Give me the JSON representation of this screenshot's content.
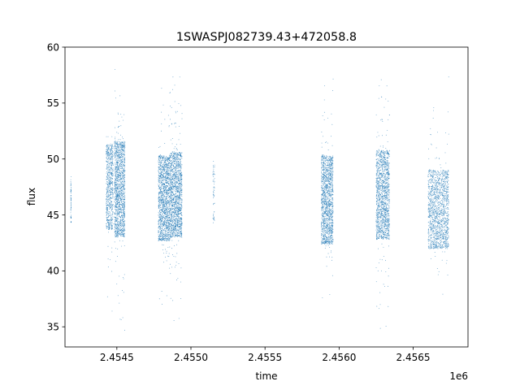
{
  "chart_data": {
    "type": "scatter",
    "title": "1SWASPJ082739.43+472058.8",
    "xlabel": "time",
    "ylabel": "flux",
    "x_offset_label": "1e6",
    "xlim": [
      2454150,
      2456870
    ],
    "ylim": [
      33.2,
      60.0
    ],
    "x_ticks": [
      2454500,
      2455000,
      2455500,
      2456000,
      2456500
    ],
    "x_tick_labels": [
      "2.4545",
      "2.4550",
      "2.4555",
      "2.4560",
      "2.4565"
    ],
    "y_ticks": [
      35,
      40,
      45,
      50,
      55,
      60
    ],
    "y_tick_labels": [
      "35",
      "40",
      "45",
      "50",
      "55",
      "60"
    ],
    "grid": false,
    "point_color": "#1f77b4",
    "observing_seasons": [
      {
        "x_start": 2454188,
        "x_end": 2454192,
        "flux_low": 44.2,
        "flux_high": 48.6,
        "outlier_low": 44.0,
        "outlier_high": 48.6,
        "density": "sparse"
      },
      {
        "x_start": 2454428,
        "x_end": 2454475,
        "flux_low": 43.5,
        "flux_high": 51.5,
        "outlier_low": 34.8,
        "outlier_high": 52.0,
        "density": "medium"
      },
      {
        "x_start": 2454484,
        "x_end": 2454555,
        "flux_low": 42.8,
        "flux_high": 51.8,
        "outlier_low": 34.5,
        "outlier_high": 58.5,
        "density": "dense"
      },
      {
        "x_start": 2454780,
        "x_end": 2454860,
        "flux_low": 42.5,
        "flux_high": 50.5,
        "outlier_low": 34.4,
        "outlier_high": 57.5,
        "density": "dense"
      },
      {
        "x_start": 2454860,
        "x_end": 2454940,
        "flux_low": 42.8,
        "flux_high": 50.8,
        "outlier_low": 35.0,
        "outlier_high": 58.8,
        "density": "dense"
      },
      {
        "x_start": 2455148,
        "x_end": 2455160,
        "flux_low": 44.0,
        "flux_high": 50.0,
        "outlier_low": 43.5,
        "outlier_high": 50.2,
        "density": "sparse"
      },
      {
        "x_start": 2455880,
        "x_end": 2455960,
        "flux_low": 42.2,
        "flux_high": 50.5,
        "outlier_low": 34.3,
        "outlier_high": 58.8,
        "density": "dense"
      },
      {
        "x_start": 2456250,
        "x_end": 2456340,
        "flux_low": 42.6,
        "flux_high": 51.0,
        "outlier_low": 34.3,
        "outlier_high": 58.0,
        "density": "dense"
      },
      {
        "x_start": 2456600,
        "x_end": 2456740,
        "flux_low": 41.8,
        "flux_high": 49.2,
        "outlier_low": 34.3,
        "outlier_high": 59.0,
        "density": "dense"
      }
    ]
  }
}
